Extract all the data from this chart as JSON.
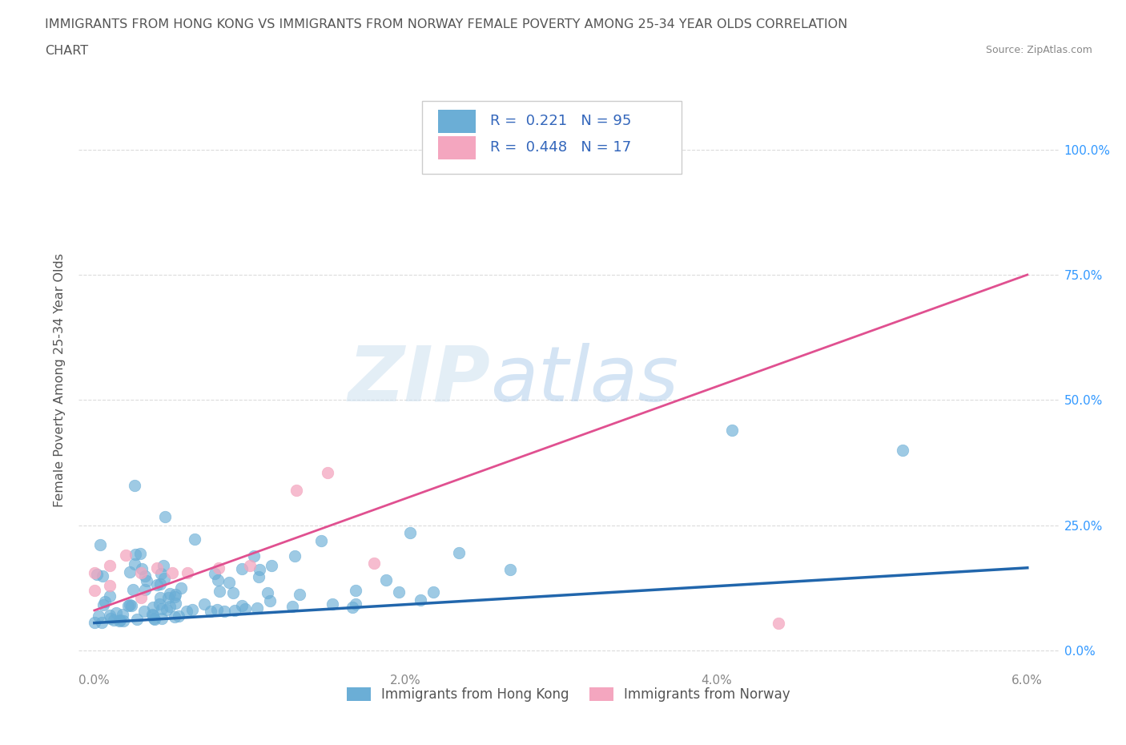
{
  "title_line1": "IMMIGRANTS FROM HONG KONG VS IMMIGRANTS FROM NORWAY FEMALE POVERTY AMONG 25-34 YEAR OLDS CORRELATION",
  "title_line2": "CHART",
  "source": "Source: ZipAtlas.com",
  "ylabel": "Female Poverty Among 25-34 Year Olds",
  "xlim": [
    -0.001,
    0.062
  ],
  "ylim": [
    -0.04,
    1.12
  ],
  "xtick_labels": [
    "0.0%",
    "2.0%",
    "4.0%",
    "6.0%"
  ],
  "xtick_vals": [
    0.0,
    0.02,
    0.04,
    0.06
  ],
  "ytick_labels": [
    "0.0%",
    "25.0%",
    "50.0%",
    "75.0%",
    "100.0%"
  ],
  "ytick_vals": [
    0.0,
    0.25,
    0.5,
    0.75,
    1.0
  ],
  "hk_color": "#6baed6",
  "norway_color": "#f4a6bf",
  "hk_line_color": "#2166ac",
  "norway_line_color": "#e05090",
  "watermark_zip": "ZIP",
  "watermark_atlas": "atlas",
  "hk_R": 0.221,
  "hk_N": 95,
  "norway_R": 0.448,
  "norway_N": 17,
  "hk_trend_x": [
    0.0,
    0.06
  ],
  "hk_trend_y": [
    0.055,
    0.165
  ],
  "norway_trend_x": [
    0.0,
    0.06
  ],
  "norway_trend_y": [
    0.08,
    0.75
  ],
  "bg_color": "#ffffff",
  "grid_color": "#cccccc",
  "title_color": "#555555",
  "axis_color": "#888888",
  "label_color": "#555555",
  "tick_color": "#3399ff",
  "legend_label_color": "#3366bb"
}
